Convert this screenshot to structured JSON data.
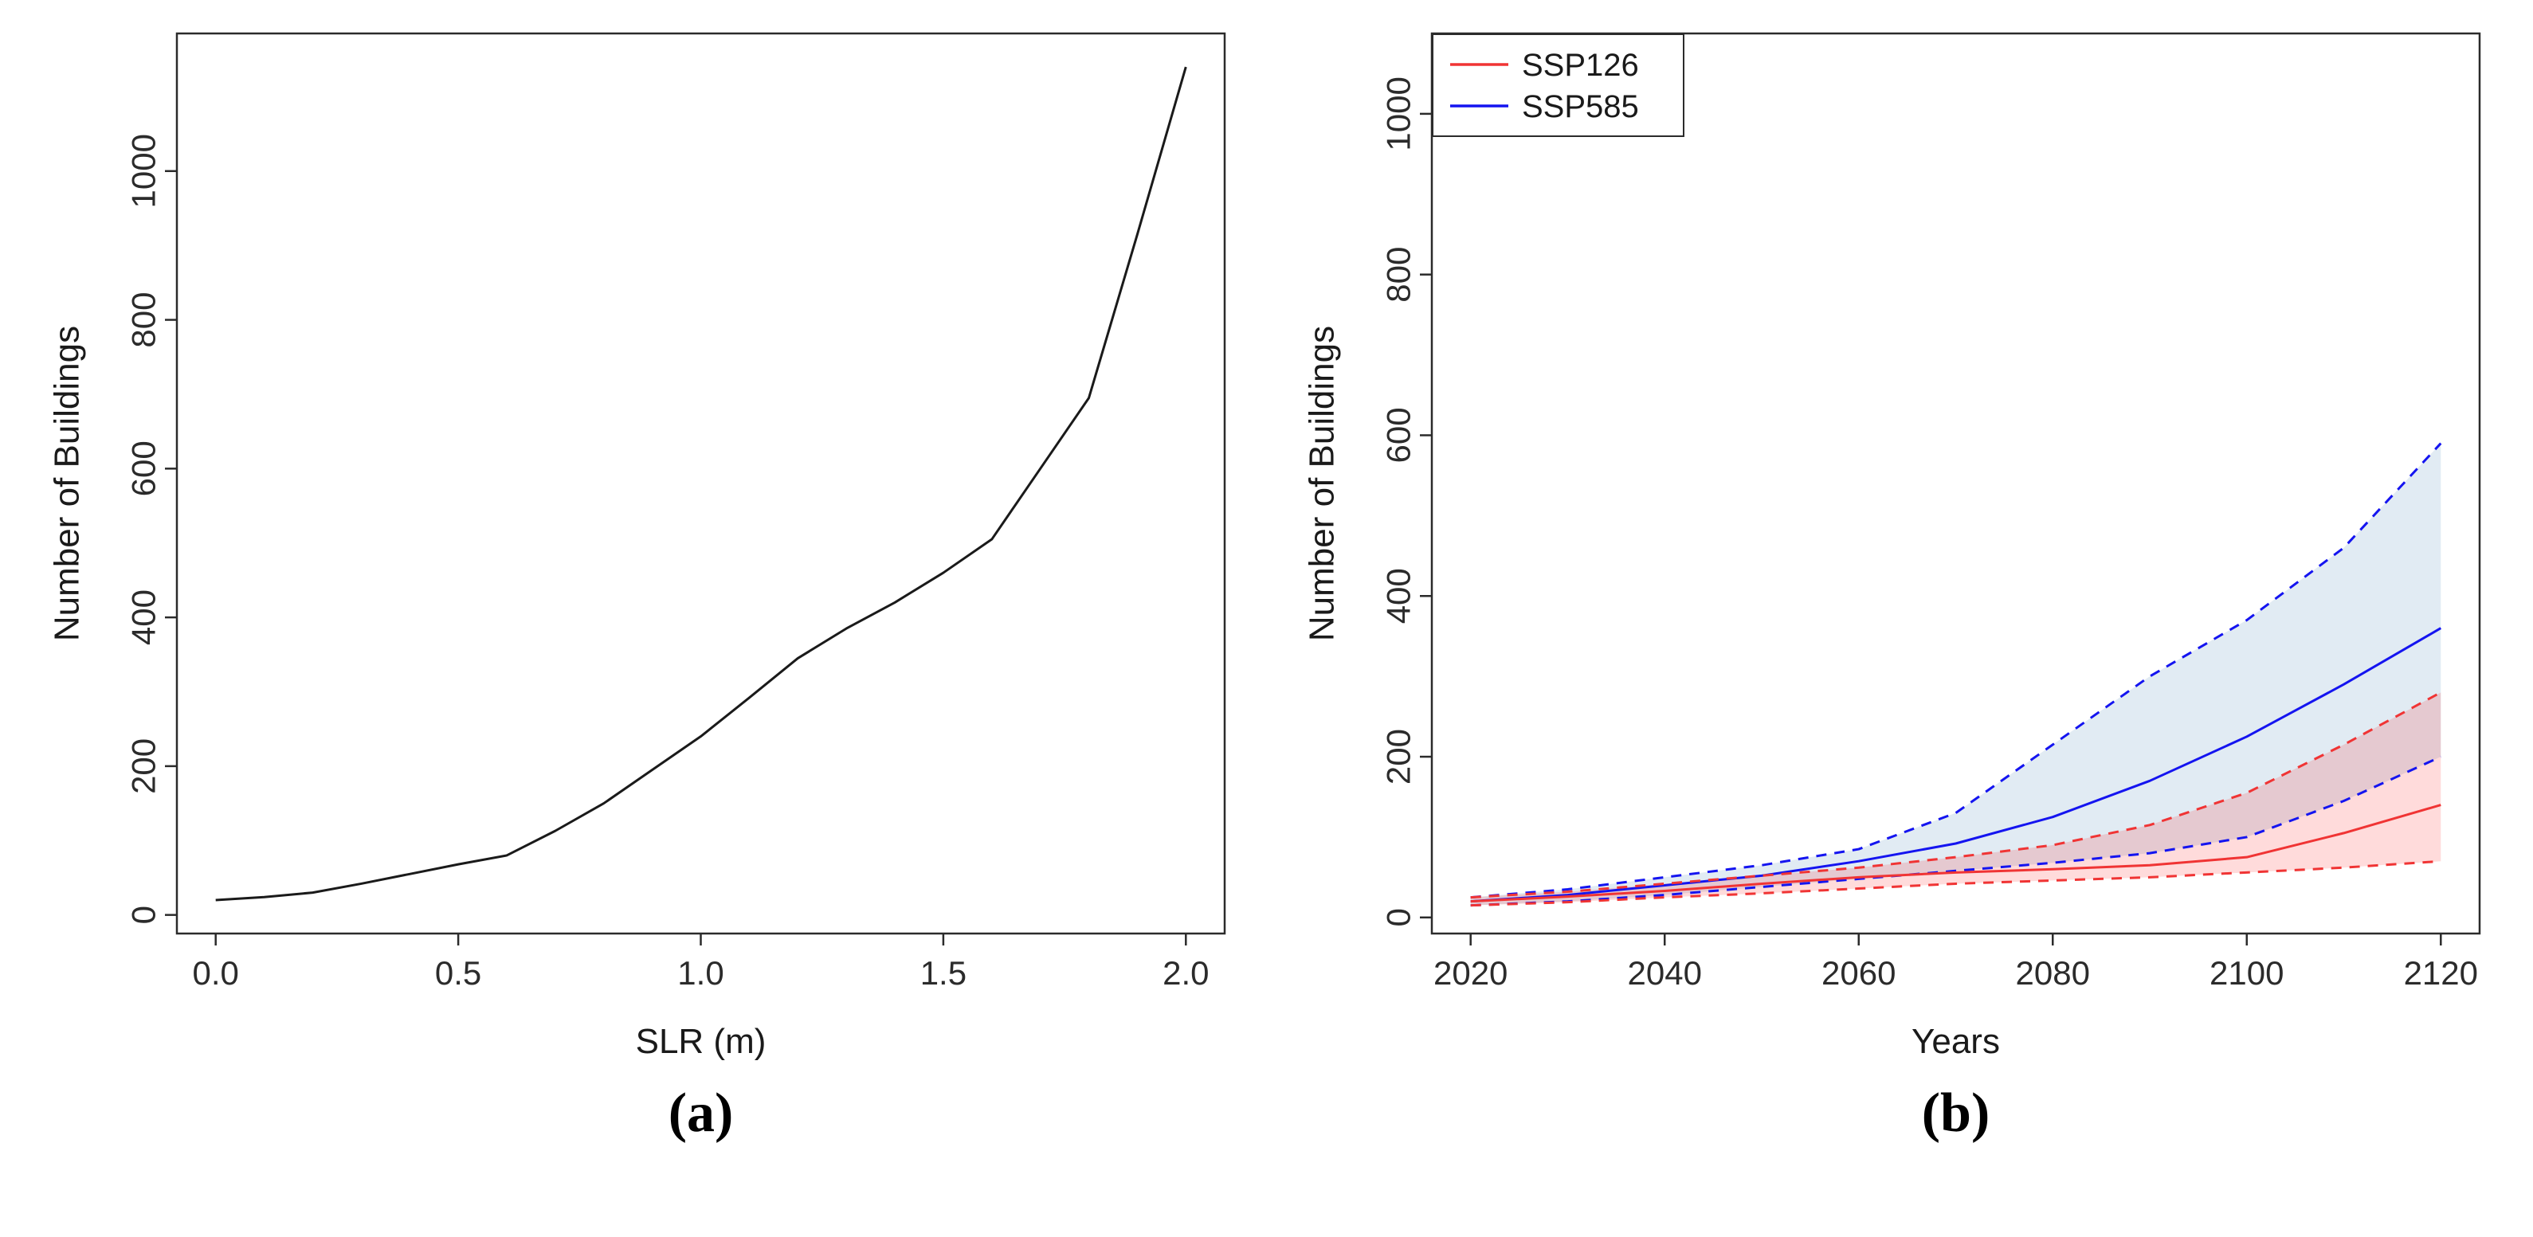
{
  "figure": {
    "background": "#ffffff",
    "panels": [
      {
        "caption": "(a)"
      },
      {
        "caption": "(b)"
      }
    ]
  },
  "chart_data": [
    {
      "type": "line",
      "title": "",
      "xlabel": "SLR (m)",
      "ylabel": "Number of Buildings",
      "xlim": [
        -0.08,
        2.08
      ],
      "ylim": [
        -25,
        1185
      ],
      "xticks": [
        0.0,
        0.5,
        1.0,
        1.5,
        2.0
      ],
      "xtick_labels": [
        "0.0",
        "0.5",
        "1.0",
        "1.5",
        "2.0"
      ],
      "yticks": [
        0,
        200,
        400,
        600,
        800,
        1000
      ],
      "ytick_labels": [
        "0",
        "200",
        "400",
        "600",
        "800",
        "1000"
      ],
      "grid": false,
      "box_color": "#2b2b2b",
      "series": [
        {
          "name": "buildings-vs-slr",
          "color": "#1a1a1a",
          "style": "solid",
          "x": [
            0.0,
            0.1,
            0.2,
            0.3,
            0.4,
            0.5,
            0.6,
            0.7,
            0.8,
            0.9,
            1.0,
            1.1,
            1.2,
            1.3,
            1.4,
            1.5,
            1.6,
            1.7,
            1.8,
            1.9,
            2.0
          ],
          "y": [
            20,
            24,
            30,
            42,
            55,
            68,
            80,
            113,
            150,
            195,
            240,
            292,
            345,
            385,
            420,
            460,
            505,
            600,
            695,
            915,
            1140
          ]
        }
      ],
      "bands": []
    },
    {
      "type": "line",
      "title": "",
      "xlabel": "Years",
      "ylabel": "Number of Buildings",
      "xlim": [
        2016,
        2124
      ],
      "ylim": [
        -20,
        1100
      ],
      "xticks": [
        2020,
        2040,
        2060,
        2080,
        2100,
        2120
      ],
      "xtick_labels": [
        "2020",
        "2040",
        "2060",
        "2080",
        "2100",
        "2120"
      ],
      "yticks": [
        0,
        200,
        400,
        600,
        800,
        1000
      ],
      "ytick_labels": [
        "0",
        "200",
        "400",
        "600",
        "800",
        "1000"
      ],
      "grid": false,
      "box_color": "#2b2b2b",
      "x": [
        2020,
        2030,
        2040,
        2050,
        2060,
        2070,
        2080,
        2090,
        2100,
        2110,
        2120
      ],
      "series": [
        {
          "name": "ssp585-upper-dashed",
          "color": "#1414f0",
          "style": "dashed",
          "y": [
            25,
            35,
            50,
            65,
            85,
            130,
            215,
            300,
            370,
            460,
            590
          ]
        },
        {
          "name": "ssp585-lower-dashed",
          "color": "#1414f0",
          "style": "dashed",
          "y": [
            15,
            20,
            28,
            38,
            48,
            58,
            68,
            80,
            100,
            145,
            200
          ]
        },
        {
          "name": "ssp585-mean",
          "color": "#1414f0",
          "style": "solid",
          "y": [
            20,
            28,
            40,
            52,
            70,
            92,
            125,
            170,
            225,
            290,
            360
          ]
        },
        {
          "name": "ssp126-upper-dashed",
          "color": "#f03434",
          "style": "dashed",
          "y": [
            25,
            32,
            42,
            52,
            62,
            75,
            90,
            115,
            155,
            215,
            280
          ]
        },
        {
          "name": "ssp126-lower-dashed",
          "color": "#f03434",
          "style": "dashed",
          "y": [
            15,
            19,
            25,
            30,
            36,
            42,
            46,
            50,
            56,
            62,
            70
          ]
        },
        {
          "name": "ssp126-mean",
          "color": "#f03434",
          "style": "solid",
          "y": [
            20,
            26,
            33,
            42,
            50,
            56,
            60,
            65,
            75,
            105,
            140
          ]
        }
      ],
      "bands": [
        {
          "name": "ssp585-uncertainty-band",
          "upper": 0,
          "lower": 1,
          "fill": "rgba(70,130,180,0.16)"
        },
        {
          "name": "ssp126-uncertainty-band",
          "upper": 3,
          "lower": 4,
          "fill": "rgba(255,0,0,0.14)"
        }
      ],
      "legend": {
        "position": "top-left",
        "entries": [
          {
            "label": "SSP126",
            "color": "#f03434"
          },
          {
            "label": "SSP585",
            "color": "#1414f0"
          }
        ]
      }
    }
  ]
}
